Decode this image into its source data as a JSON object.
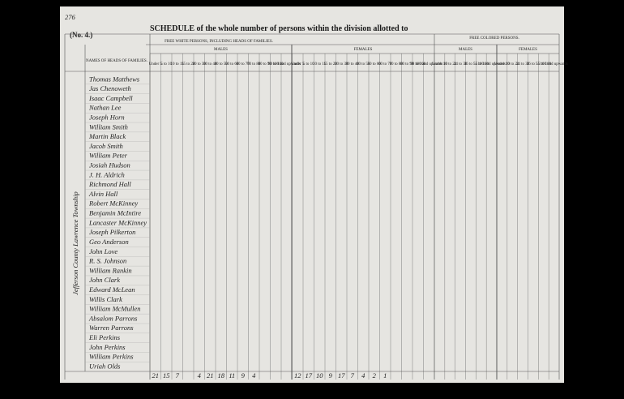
{
  "page_number": "276",
  "form_number": "(No. 4.)",
  "title": "SCHEDULE of the whole number of persons within the division allotted to",
  "side_note": "Jefferson County Lawrence Township",
  "names_header": "NAMES OF HEADS OF FAMILIES.",
  "free_white_header": "FREE WHITE PERSONS, INCLUDING HEADS OF FAMILIES.",
  "free_colored_header": "FREE COLORED PERSONS.",
  "males_label": "MALES",
  "females_label": "FEMALES",
  "white_age_columns": [
    "Under 5",
    "5 to 10",
    "10 to 15",
    "15 to 20",
    "20 to 30",
    "30 to 40",
    "40 to 50",
    "50 to 60",
    "60 to 70",
    "70 to 80",
    "80 to 90",
    "90 to 100",
    "100 and upwards"
  ],
  "colored_age_columns": [
    "Under 10",
    "10 to 24",
    "24 to 36",
    "36 to 55",
    "55 to 100",
    "100 and upwards"
  ],
  "names": [
    "Thomas Matthews",
    "Jas Chenoweth",
    "Isaac Campbell",
    "Nathan Lee",
    "Joseph Horn",
    "William Smith",
    "Martin Black",
    "Jacob Smith",
    "William Peter",
    "Josiah Hudson",
    "J. H. Aldrich",
    "Richmond Hall",
    "Alvin Hall",
    "Robert McKinney",
    "Benjamin McIntire",
    "Lancaster McKinney",
    "Joseph Pilkerton",
    "Geo Anderson",
    "John Love",
    "R. S. Johnson",
    "William Rankin",
    "John Clark",
    "Edward McLean",
    "Willis Clark",
    "William McMullen",
    "Absalom Parrons",
    "Warren Parrons",
    "Eli Perkins",
    "John Perkins",
    "William Perkins",
    "Uriah Olds"
  ],
  "male_totals": [
    21,
    15,
    7,
    null,
    4,
    21,
    18,
    11,
    9,
    4,
    null,
    null,
    null
  ],
  "female_totals": [
    12,
    17,
    10,
    9,
    17,
    7,
    4,
    2,
    1,
    null,
    null,
    null,
    null
  ]
}
